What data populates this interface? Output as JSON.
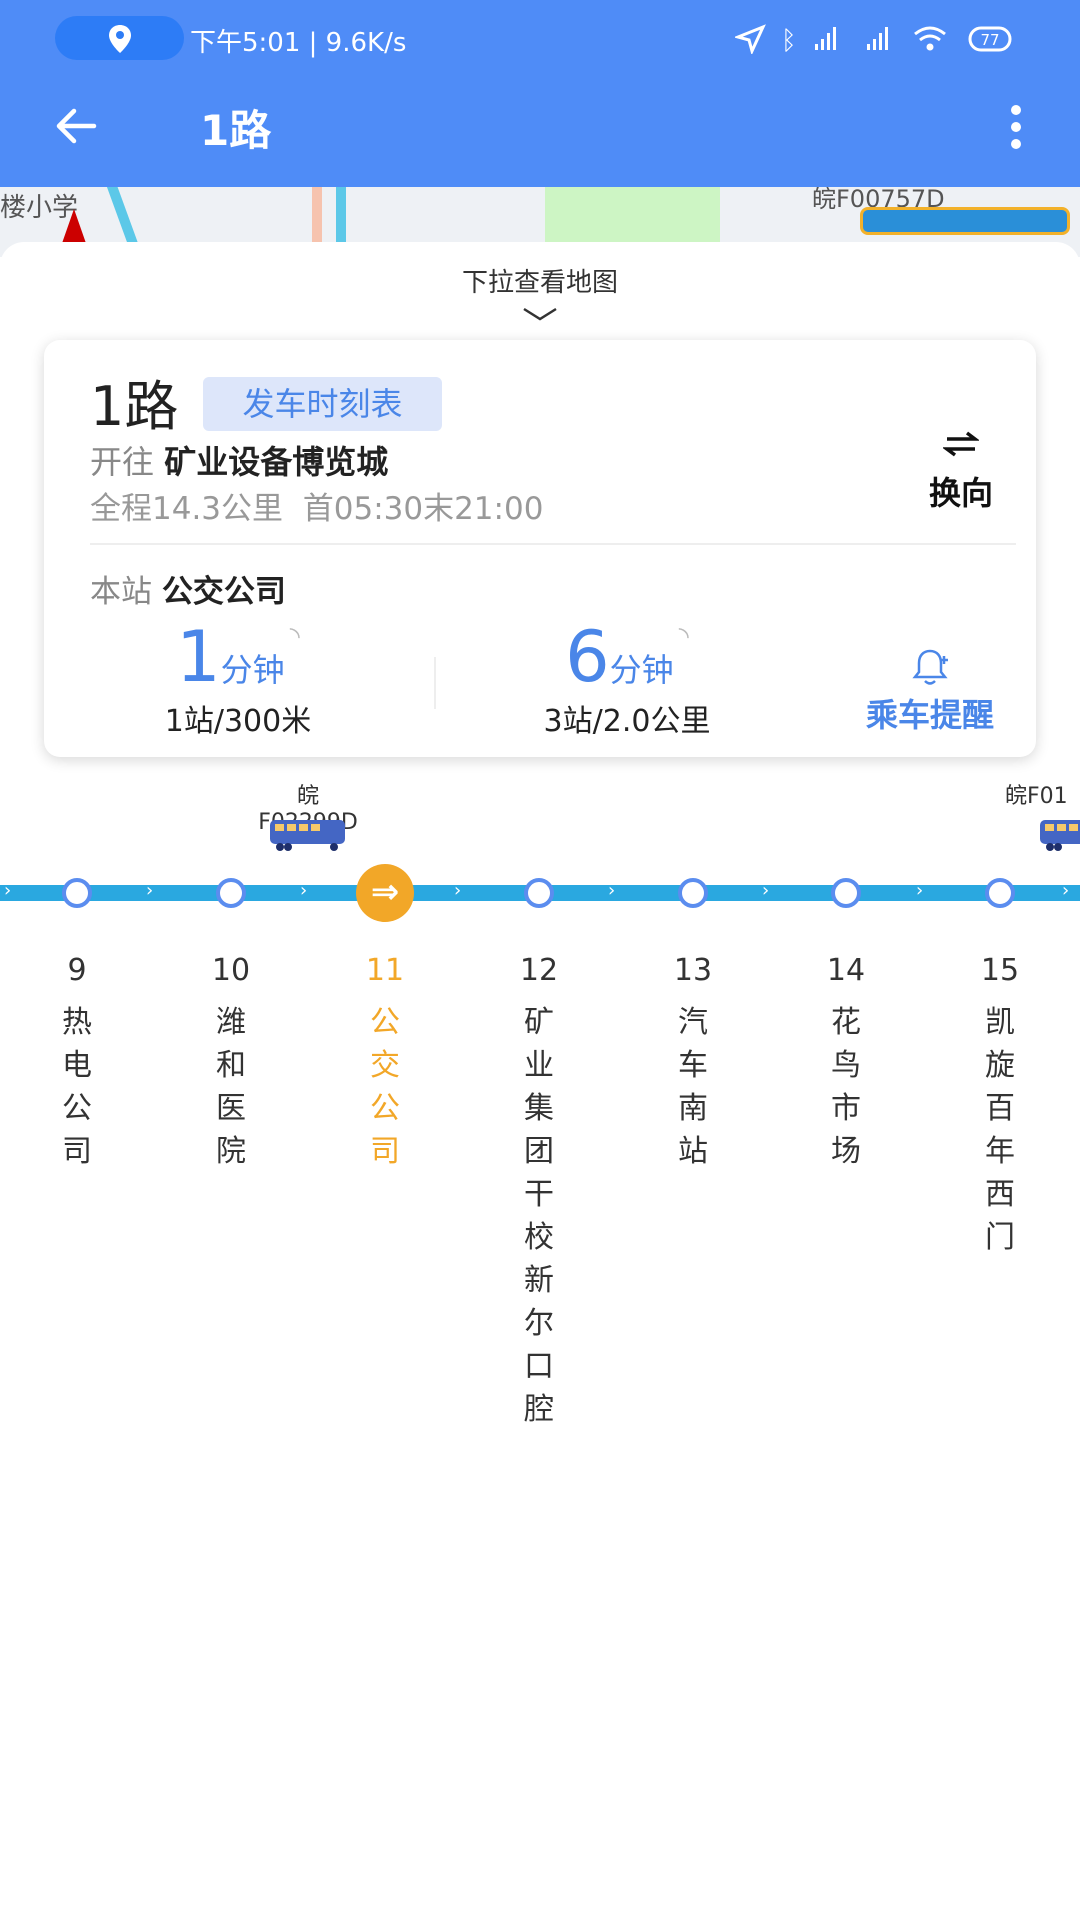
{
  "status_bar": {
    "time_speed": "下午5:01 | 9.6K/s",
    "battery": "77",
    "icons": [
      "location-pin-icon",
      "navigation-icon",
      "bluetooth-icon",
      "signal-hd-icon",
      "signal-hd-icon",
      "wifi-icon",
      "battery-icon"
    ]
  },
  "app_bar": {
    "title": "1路",
    "back_icon": "arrow-left-icon",
    "menu_icon": "more-vertical-icon"
  },
  "map": {
    "labels": [
      "楼小学",
      "皖F00757D"
    ]
  },
  "sheet": {
    "pull_hint": "下拉查看地图"
  },
  "route_card": {
    "route_name": "1路",
    "timetable_button": "发车时刻表",
    "direction_prefix": "开往",
    "destination": "矿业设备博览城",
    "distance": "全程14.3公里",
    "hours": "首05:30末21:00",
    "reverse_label": "换向",
    "current_stop_prefix": "本站",
    "current_stop": "公交公司",
    "arrivals": [
      {
        "minutes": "1",
        "unit": "分钟",
        "detail": "1站/300米"
      },
      {
        "minutes": "6",
        "unit": "分钟",
        "detail": "3站/2.0公里"
      }
    ],
    "reminder_label": "乘车提醒"
  },
  "buses": [
    {
      "plate": "皖F02299D"
    },
    {
      "plate": "皖F01"
    }
  ],
  "stations": [
    {
      "num": "9",
      "name": "热电公司"
    },
    {
      "num": "10",
      "name": "潍和医院"
    },
    {
      "num": "11",
      "name": "公交公司",
      "current": true
    },
    {
      "num": "12",
      "name": "矿业集团干校新尔口腔"
    },
    {
      "num": "13",
      "name": "汽车南站"
    },
    {
      "num": "14",
      "name": "花鸟市场"
    },
    {
      "num": "15",
      "name": "凯旋百年西门"
    }
  ],
  "colors": {
    "primary": "#4f8cf7",
    "line": "#2aa8e0",
    "current": "#f2a728",
    "accent_text": "#4a86e8"
  }
}
